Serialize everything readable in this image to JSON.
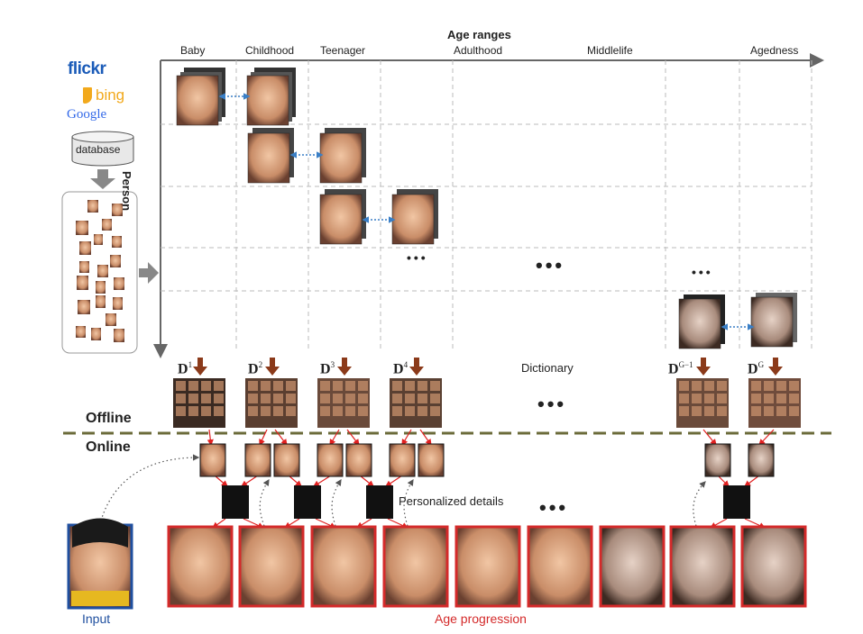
{
  "axis": {
    "title": "Age ranges",
    "y_title": "Person",
    "columns": [
      "Baby",
      "Childhood",
      "Teenager",
      "Adulthood",
      "Middlelife",
      "Agedness"
    ]
  },
  "sources": {
    "flickr": "flickr",
    "bing": "bing",
    "google": "Google",
    "database": "database"
  },
  "labels": {
    "dictionary": "Dictionary",
    "offline": "Offline",
    "online": "Online",
    "personalized_details": "Personalized details",
    "input": "Input",
    "age_progression": "Age progression",
    "ellipsis": "•••"
  },
  "dictionaries": [
    "D",
    "D",
    "D",
    "D",
    "D",
    "D"
  ],
  "dictionary_indices": [
    "1",
    "2",
    "3",
    "4",
    "G−1",
    "G"
  ],
  "colors": {
    "arrow_brown": "#8b3a1a",
    "arrow_red": "#e02020",
    "link_blue": "#3a7fc6",
    "input_border": "#1f4f9f",
    "output_border": "#d42a2a",
    "divider": "#6b6b3a"
  }
}
